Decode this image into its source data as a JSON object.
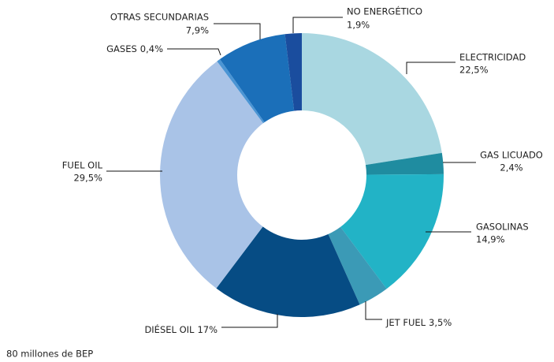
{
  "chart_data": {
    "type": "donut",
    "categories": [
      "ELECTRICIDAD",
      "GAS LICUADO",
      "GASOLINAS",
      "JET FUEL",
      "DIÉSEL OIL",
      "FUEL OIL",
      "GASES",
      "OTRAS SECUNDARIAS",
      "NO ENERGÉTICO"
    ],
    "values": [
      22.5,
      2.4,
      14.9,
      3.5,
      17,
      29.5,
      0.4,
      7.9,
      1.9
    ],
    "value_labels": [
      "22,5%",
      "2,4%",
      "14,9%",
      "3,5%",
      "17%",
      "29,5%",
      "0,4%",
      "7,9%",
      "1,9%"
    ],
    "colors": [
      "#a9d7e1",
      "#1f8ca0",
      "#22b3c6",
      "#3b9ab6",
      "#064c84",
      "#a9c3e7",
      "#4b95d4",
      "#1b6fb9",
      "#1a4d9e"
    ],
    "note": "80 millones de BEP"
  }
}
